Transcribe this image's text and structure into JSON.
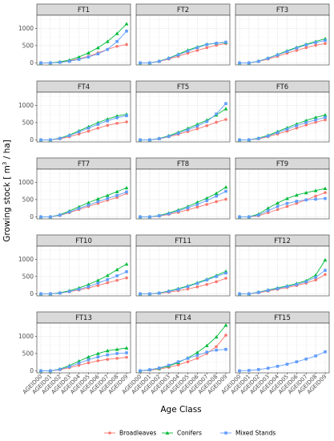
{
  "chart_data": {
    "type": "line",
    "xlabel": "Age Class",
    "ylabel_main": "Growing stock [ m",
    "ylabel_sup": "3",
    "ylabel_end": " / ha]",
    "yticks": [
      0,
      500,
      1000
    ],
    "ylim": [
      0,
      1200
    ],
    "categories": [
      "AGEID00",
      "AGEID01",
      "AGEID02",
      "AGEID03",
      "AGEID04",
      "AGEID05",
      "AGEID06",
      "AGEID07",
      "AGEID08",
      "AGEID09"
    ],
    "legend": {
      "position": "bottom",
      "entries": [
        {
          "name": "Broadleaves",
          "color": "#F8766D",
          "marker": "circle"
        },
        {
          "name": "Conifers",
          "color": "#00BA38",
          "marker": "triangle"
        },
        {
          "name": "Mixed Stands",
          "color": "#619CFF",
          "marker": "square"
        }
      ]
    },
    "panels": [
      {
        "name": "FT1",
        "series": [
          {
            "name": "Broadleaves",
            "values": [
              0,
              0,
              20,
              60,
              120,
              190,
              290,
              390,
              480,
              530
            ]
          },
          {
            "name": "Conifers",
            "values": [
              0,
              0,
              30,
              80,
              170,
              290,
              440,
              620,
              850,
              1130
            ]
          },
          {
            "name": "Mixed Stands",
            "values": [
              0,
              0,
              15,
              45,
              100,
              170,
              260,
              390,
              620,
              920
            ]
          }
        ]
      },
      {
        "name": "FT2",
        "series": [
          {
            "name": "Broadleaves",
            "values": [
              0,
              0,
              40,
              110,
              190,
              280,
              360,
              440,
              510,
              560
            ]
          },
          {
            "name": "Conifers",
            "values": [
              0,
              0,
              50,
              140,
              250,
              370,
              460,
              540,
              570,
              590
            ]
          },
          {
            "name": "Mixed Stands",
            "values": [
              0,
              0,
              45,
              130,
              230,
              340,
              440,
              530,
              570,
              600
            ]
          }
        ]
      },
      {
        "name": "FT3",
        "series": [
          {
            "name": "Broadleaves",
            "values": [
              0,
              0,
              40,
              110,
              190,
              280,
              360,
              440,
              510,
              560
            ]
          },
          {
            "name": "Conifers",
            "values": [
              0,
              0,
              50,
              140,
              240,
              350,
              450,
              540,
              620,
              700
            ]
          },
          {
            "name": "Mixed Stands",
            "values": [
              0,
              0,
              45,
              130,
              230,
              330,
              430,
              520,
              590,
              650
            ]
          }
        ]
      },
      {
        "name": "FT4",
        "series": [
          {
            "name": "Broadleaves",
            "values": [
              0,
              0,
              30,
              90,
              170,
              250,
              340,
              420,
              480,
              520
            ]
          },
          {
            "name": "Conifers",
            "values": [
              0,
              0,
              50,
              140,
              260,
              380,
              500,
              600,
              690,
              740
            ]
          },
          {
            "name": "Mixed Stands",
            "values": [
              0,
              0,
              40,
              120,
              230,
              340,
              450,
              550,
              640,
              700
            ]
          }
        ]
      },
      {
        "name": "FT5",
        "series": [
          {
            "name": "Broadleaves",
            "values": [
              0,
              0,
              30,
              90,
              160,
              240,
              320,
              410,
              510,
              590
            ]
          },
          {
            "name": "Conifers",
            "values": [
              0,
              0,
              40,
              120,
              220,
              330,
              450,
              570,
              720,
              900
            ]
          },
          {
            "name": "Mixed Stands",
            "values": [
              0,
              0,
              35,
              100,
              190,
              290,
              400,
              530,
              750,
              1050
            ]
          }
        ]
      },
      {
        "name": "FT6",
        "series": [
          {
            "name": "Broadleaves",
            "values": [
              0,
              0,
              30,
              90,
              170,
              250,
              340,
              430,
              510,
              580
            ]
          },
          {
            "name": "Conifers",
            "values": [
              0,
              0,
              50,
              130,
              240,
              350,
              460,
              560,
              650,
              720
            ]
          },
          {
            "name": "Mixed Stands",
            "values": [
              0,
              0,
              40,
              110,
              210,
              310,
              410,
              500,
              580,
              650
            ]
          }
        ]
      },
      {
        "name": "FT7",
        "series": [
          {
            "name": "Broadleaves",
            "values": [
              0,
              0,
              40,
              120,
              210,
              300,
              390,
              480,
              560,
              680
            ]
          },
          {
            "name": "Conifers",
            "values": [
              0,
              0,
              60,
              170,
              290,
              410,
              520,
              620,
              730,
              840
            ]
          },
          {
            "name": "Mixed Stands",
            "values": [
              0,
              0,
              50,
              140,
              240,
              340,
              440,
              530,
              620,
              720
            ]
          }
        ]
      },
      {
        "name": "FT8",
        "series": [
          {
            "name": "Broadleaves",
            "values": [
              0,
              0,
              20,
              70,
              130,
              200,
              280,
              360,
              440,
              510
            ]
          },
          {
            "name": "Conifers",
            "values": [
              0,
              0,
              40,
              110,
              200,
              300,
              420,
              540,
              680,
              860
            ]
          },
          {
            "name": "Mixed Stands",
            "values": [
              0,
              0,
              30,
              90,
              170,
              260,
              360,
              470,
              600,
              740
            ]
          }
        ]
      },
      {
        "name": "FT9",
        "series": [
          {
            "name": "Broadleaves",
            "values": [
              0,
              0,
              30,
              120,
              210,
              300,
              390,
              490,
              600,
              700
            ]
          },
          {
            "name": "Conifers",
            "values": [
              0,
              0,
              80,
              250,
              400,
              530,
              630,
              700,
              760,
              820
            ]
          },
          {
            "name": "Mixed Stands",
            "values": [
              0,
              0,
              50,
              180,
              300,
              390,
              450,
              490,
              510,
              530
            ]
          }
        ]
      },
      {
        "name": "FT10",
        "series": [
          {
            "name": "Broadleaves",
            "values": [
              0,
              0,
              20,
              60,
              110,
              170,
              240,
              320,
              390,
              460
            ]
          },
          {
            "name": "Conifers",
            "values": [
              0,
              0,
              30,
              90,
              170,
              270,
              390,
              530,
              700,
              860
            ]
          },
          {
            "name": "Mixed Stands",
            "values": [
              0,
              0,
              20,
              70,
              130,
              210,
              310,
              410,
              520,
              640
            ]
          }
        ]
      },
      {
        "name": "FT11",
        "series": [
          {
            "name": "Broadleaves",
            "values": [
              0,
              0,
              15,
              45,
              90,
              140,
              200,
              270,
              350,
              450
            ]
          },
          {
            "name": "Conifers",
            "values": [
              0,
              0,
              25,
              80,
              150,
              230,
              320,
              420,
              530,
              650
            ]
          },
          {
            "name": "Mixed Stands",
            "values": [
              0,
              0,
              20,
              70,
              130,
              210,
              300,
              400,
              500,
              600
            ]
          }
        ]
      },
      {
        "name": "FT12",
        "series": [
          {
            "name": "Broadleaves",
            "values": [
              0,
              0,
              30,
              80,
              130,
              180,
              240,
              310,
              400,
              560
            ]
          },
          {
            "name": "Conifers",
            "values": [
              0,
              0,
              50,
              110,
              170,
              230,
              300,
              380,
              540,
              980
            ]
          },
          {
            "name": "Mixed Stands",
            "values": [
              0,
              0,
              40,
              100,
              150,
              210,
              270,
              350,
              480,
              680
            ]
          }
        ]
      },
      {
        "name": "FT13",
        "series": [
          {
            "name": "Broadleaves",
            "values": [
              0,
              0,
              30,
              90,
              160,
              230,
              290,
              330,
              360,
              390
            ]
          },
          {
            "name": "Conifers",
            "values": [
              0,
              0,
              50,
              150,
              280,
              400,
              500,
              580,
              620,
              660
            ]
          },
          {
            "name": "Mixed Stands",
            "values": [
              0,
              0,
              40,
              120,
              220,
              320,
              400,
              460,
              500,
              520
            ]
          }
        ]
      },
      {
        "name": "FT14",
        "series": [
          {
            "name": "Broadleaves",
            "values": [
              0,
              20,
              50,
              100,
              170,
              260,
              360,
              500,
              700,
              1030
            ]
          },
          {
            "name": "Conifers",
            "values": [
              0,
              30,
              70,
              140,
              240,
              370,
              530,
              730,
              980,
              1320
            ]
          },
          {
            "name": "Mixed Stands",
            "values": [
              0,
              30,
              80,
              160,
              260,
              360,
              450,
              540,
              600,
              620
            ]
          }
        ]
      },
      {
        "name": "FT15",
        "series": [
          {
            "name": "Mixed Stands",
            "values": [
              0,
              10,
              35,
              75,
              130,
              190,
              260,
              340,
              430,
              550
            ]
          }
        ]
      }
    ]
  }
}
